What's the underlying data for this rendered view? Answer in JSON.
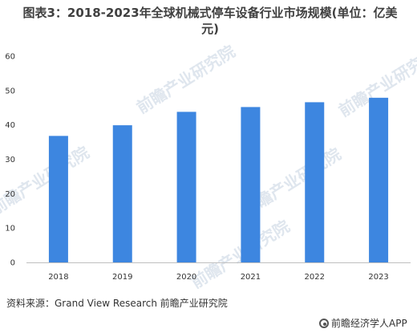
{
  "title": "图表3：2018-2023年全球机械式停车设备行业市场规模(单位：亿美元)",
  "source": "资料来源：Grand View Research 前瞻产业研究院",
  "footer_logo_text": "前瞻经济学人APP",
  "watermark_text": "前瞻产业研究院",
  "colors": {
    "bar": "#3d86e0",
    "axis": "#bfbfbf"
  },
  "chart_data": {
    "type": "bar",
    "categories": [
      "2018",
      "2019",
      "2020",
      "2021",
      "2022",
      "2023"
    ],
    "values": [
      36.8,
      39.9,
      43.8,
      45.2,
      46.6,
      47.9
    ],
    "ylim": [
      0,
      60
    ],
    "yticks": [
      0,
      10,
      20,
      30,
      40,
      50,
      60
    ],
    "grid": false,
    "legend": "none"
  }
}
